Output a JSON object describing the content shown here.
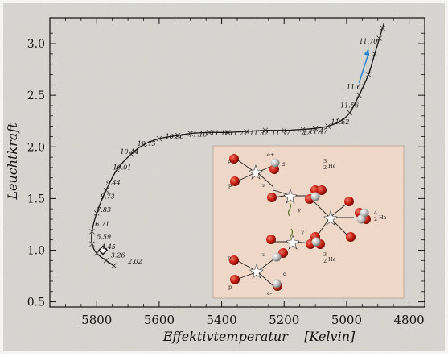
{
  "chart_data": {
    "type": "line",
    "title": "",
    "xlabel": "Effektivtemperatur    [Kelvin]",
    "ylabel": "Leuchtkraft",
    "xlim": [
      5950,
      4750
    ],
    "ylim": [
      0.45,
      3.25
    ],
    "x_direction": "reversed",
    "xticks": [
      5800,
      5600,
      5400,
      5200,
      5000,
      4800
    ],
    "yticks": [
      0.5,
      1.0,
      1.5,
      2.0,
      2.5,
      3.0
    ],
    "ytick_labels": [
      "0.5",
      "1.0",
      "1.5",
      "2.0",
      "2.5",
      "3.0"
    ],
    "grid": false,
    "series": [
      {
        "style": "black line with cross markers",
        "x": [
          5745,
          5770,
          5800,
          5815,
          5815,
          5800,
          5770,
          5735,
          5690,
          5650,
          5600,
          5540,
          5500,
          5440,
          5380,
          5320,
          5260,
          5200,
          5140,
          5100,
          5060,
          5020,
          4990,
          4960,
          4930,
          4910,
          4895,
          4885,
          4880
        ],
        "y": [
          0.85,
          0.9,
          0.97,
          1.06,
          1.18,
          1.36,
          1.58,
          1.78,
          1.93,
          2.02,
          2.08,
          2.11,
          2.13,
          2.14,
          2.14,
          2.15,
          2.16,
          2.16,
          2.17,
          2.18,
          2.2,
          2.25,
          2.33,
          2.5,
          2.7,
          2.9,
          3.05,
          3.15,
          3.2
        ]
      }
    ],
    "annotations": [
      {
        "text": "2.02",
        "x": 5700,
        "y": 0.87
      },
      {
        "text": "3.26",
        "x": 5755,
        "y": 0.93
      },
      {
        "text": "4.45",
        "x": 5785,
        "y": 1.01
      },
      {
        "text": "5.59",
        "x": 5800,
        "y": 1.11
      },
      {
        "text": "6.71",
        "x": 5805,
        "y": 1.23
      },
      {
        "text": "7.83",
        "x": 5800,
        "y": 1.37
      },
      {
        "text": "8.73",
        "x": 5788,
        "y": 1.5
      },
      {
        "text": "9.44",
        "x": 5770,
        "y": 1.63
      },
      {
        "text": "10.01",
        "x": 5748,
        "y": 1.78
      },
      {
        "text": "10.44",
        "x": 5725,
        "y": 1.93
      },
      {
        "text": "10.75",
        "x": 5670,
        "y": 2.01
      },
      {
        "text": "10.96",
        "x": 5580,
        "y": 2.08
      },
      {
        "text": "11.10",
        "x": 5505,
        "y": 2.1
      },
      {
        "text": "11.18",
        "x": 5435,
        "y": 2.11
      },
      {
        "text": "11.27",
        "x": 5375,
        "y": 2.11
      },
      {
        "text": "11.32",
        "x": 5310,
        "y": 2.11
      },
      {
        "text": "11.37",
        "x": 5240,
        "y": 2.11
      },
      {
        "text": "11.42",
        "x": 5175,
        "y": 2.11
      },
      {
        "text": "11.47",
        "x": 5120,
        "y": 2.13
      },
      {
        "text": "11.52",
        "x": 5050,
        "y": 2.22
      },
      {
        "text": "11.56",
        "x": 5020,
        "y": 2.38
      },
      {
        "text": "11.62",
        "x": 5000,
        "y": 2.56
      },
      {
        "text": "11.70",
        "x": 4960,
        "y": 3.0
      }
    ],
    "marker": {
      "shape": "diamond",
      "x": 5780,
      "y": 1.0
    },
    "arrow": {
      "from": [
        4960,
        2.62
      ],
      "to": [
        4930,
        2.95
      ],
      "color": "#2f86d6"
    },
    "inset": {
      "description_labels": [
        "p",
        "p",
        "e+",
        "d",
        "γ",
        "3/2He",
        "p",
        "p",
        "e-",
        "d",
        "γ",
        "3/2He",
        "4/2He",
        "ν",
        "ν"
      ]
    }
  },
  "inset_labels": {
    "p1": "p",
    "p2": "p",
    "p3": "p",
    "p4": "p",
    "e_plus": "e+",
    "e_minus": "e-",
    "d1": "d",
    "d2": "d",
    "gamma1": "γ",
    "gamma2": "γ",
    "he3_top": "He",
    "he3_bottom": "He",
    "he4": "He",
    "mass3": "3",
    "mass4": "4",
    "z2": "2",
    "nu1": "ν",
    "nu2": "ν"
  }
}
